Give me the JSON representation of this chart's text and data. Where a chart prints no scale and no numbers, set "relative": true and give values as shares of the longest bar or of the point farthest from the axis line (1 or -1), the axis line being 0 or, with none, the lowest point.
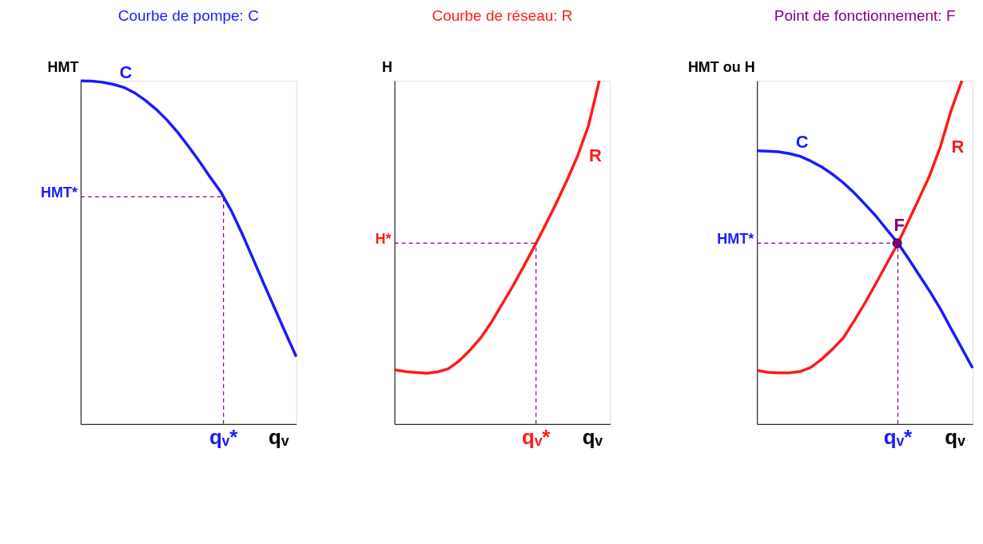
{
  "chart_data": [
    {
      "type": "line",
      "title": "Courbe de pompe: C",
      "ylabel": "HMT",
      "relative": true,
      "annotations": [
        "qᵥ"
      ],
      "categories": [
        null,
        null,
        null,
        null,
        null,
        null,
        null,
        null,
        null,
        null,
        null,
        null,
        null,
        null,
        null,
        null,
        null,
        null,
        null,
        null,
        null
      ],
      "series": [
        {
          "name": "C",
          "color": "#1a1aff",
          "values": [
            1.0,
            0.999,
            0.996,
            0.99,
            0.981,
            0.965,
            0.943,
            0.917,
            0.886,
            0.85,
            0.809,
            0.766,
            0.72,
            0.676,
            0.62,
            0.553,
            0.481,
            0.408,
            0.337,
            0.266,
            0.196
          ]
        }
      ],
      "ref_lines": [
        {
          "axis": "x",
          "label": "qᵥ*",
          "color": "#800080",
          "line_style": "dashed"
        },
        {
          "axis": "y",
          "value": 0.662,
          "label": "HMT*",
          "color": "#800080",
          "line_style": "dashed"
        }
      ]
    },
    {
      "type": "line",
      "title": "Courbe de réseau: R",
      "ylabel": "H",
      "relative": true,
      "annotations": [
        "qᵥ"
      ],
      "categories": [
        null,
        null,
        null,
        null,
        null,
        null,
        null,
        null,
        null,
        null,
        null,
        null,
        null,
        null,
        null,
        null,
        null,
        null,
        null,
        null,
        null
      ],
      "series": [
        {
          "name": "R",
          "color": "#ff1a1a",
          "values": [
            0.158,
            0.153,
            0.15,
            0.148,
            0.152,
            0.161,
            0.184,
            0.215,
            0.251,
            0.297,
            0.35,
            0.403,
            0.46,
            0.519,
            0.58,
            0.643,
            0.71,
            0.782,
            0.87,
            1.0,
            null
          ]
        }
      ],
      "ref_lines": [
        {
          "axis": "x",
          "label": "qᵥ*",
          "color": "#800080",
          "line_style": "dashed"
        },
        {
          "axis": "y",
          "value": 0.527,
          "label": "H*",
          "color": "#800080",
          "line_style": "dashed"
        }
      ]
    },
    {
      "type": "line",
      "title": "Point de fonctionnement: F",
      "ylabel": "HMT ou H",
      "relative": true,
      "annotations": [
        "qᵥ"
      ],
      "categories": [
        null,
        null,
        null,
        null,
        null,
        null,
        null,
        null,
        null,
        null,
        null,
        null,
        null,
        null,
        null,
        null,
        null,
        null,
        null,
        null,
        null
      ],
      "series": [
        {
          "name": "C",
          "color": "#1a1aff",
          "values": [
            0.796,
            0.795,
            0.793,
            0.788,
            0.78,
            0.766,
            0.749,
            0.728,
            0.703,
            0.674,
            0.641,
            0.607,
            0.568,
            0.53,
            0.484,
            0.436,
            0.388,
            0.336,
            0.278,
            0.221,
            0.163
          ]
        },
        {
          "name": "R",
          "color": "#ff1a1a",
          "values": [
            0.156,
            0.151,
            0.149,
            0.149,
            0.153,
            0.165,
            0.189,
            0.218,
            0.251,
            0.3,
            0.352,
            0.408,
            0.465,
            0.522,
            0.588,
            0.655,
            0.723,
            0.807,
            0.913,
            1.0,
            null
          ]
        },
        {
          "name": "F",
          "marker": "circle",
          "color": "#800080",
          "values": [
            null,
            null,
            null,
            null,
            null,
            null,
            null,
            null,
            null,
            null,
            null,
            null,
            null,
            0.527,
            null,
            null,
            null,
            null,
            null,
            null,
            null
          ]
        }
      ],
      "ref_lines": [
        {
          "axis": "x",
          "label": "qᵥ*",
          "color": "#800080",
          "line_style": "dashed"
        },
        {
          "axis": "y",
          "value": 0.527,
          "label": "HMT*",
          "color": "#800080",
          "line_style": "dashed"
        }
      ]
    }
  ]
}
